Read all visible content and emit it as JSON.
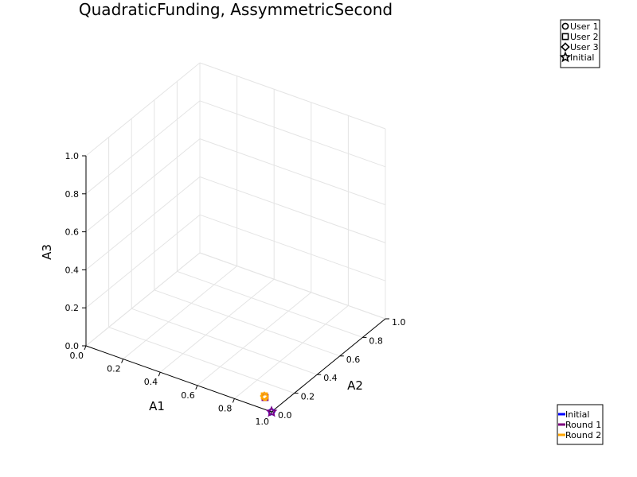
{
  "chart_data": {
    "type": "scatter",
    "title": "QuadraticFunding, AssymmetricSecond",
    "xlabel": "A1",
    "ylabel": "A2",
    "zlabel": "A3",
    "xlim": [
      0,
      1
    ],
    "ylim": [
      0,
      1
    ],
    "zlim": [
      0,
      1
    ],
    "ticks": [
      "0.0",
      "0.2",
      "0.4",
      "0.6",
      "0.8",
      "1.0"
    ],
    "grid": true,
    "marker_legend": {
      "placement": "top-right",
      "entries": [
        {
          "label": "User 1",
          "marker": "circle"
        },
        {
          "label": "User 2",
          "marker": "square"
        },
        {
          "label": "User 3",
          "marker": "diamond"
        },
        {
          "label": "Initial",
          "marker": "star"
        }
      ]
    },
    "round_legend": {
      "placement": "bottom-right",
      "entries": [
        {
          "label": "Initial",
          "color": "#0000ff"
        },
        {
          "label": "Round 1",
          "color": "#800080"
        },
        {
          "label": "Round 2",
          "color": "#ffa500"
        }
      ]
    },
    "series": [
      {
        "name": "Initial",
        "color": "#0000ff",
        "points": [
          {
            "marker": "star",
            "x": 1.0,
            "y": 0.0,
            "z": 0.0
          },
          {
            "marker": "circle",
            "x": 1.0,
            "y": 0.0,
            "z": 0.0
          }
        ]
      },
      {
        "name": "Round 1",
        "color": "#800080",
        "points": [
          {
            "marker": "square",
            "x": 0.91,
            "y": 0.09,
            "z": 0.0
          },
          {
            "marker": "star",
            "x": 1.0,
            "y": 0.0,
            "z": 0.0
          }
        ]
      },
      {
        "name": "Round 2",
        "color": "#ffa500",
        "points": [
          {
            "marker": "square",
            "x": 0.9,
            "y": 0.1,
            "z": 0.0
          },
          {
            "marker": "circle",
            "x": 0.91,
            "y": 0.09,
            "z": 0.0
          },
          {
            "marker": "diamond",
            "x": 0.9,
            "y": 0.1,
            "z": 0.0
          }
        ]
      }
    ]
  }
}
